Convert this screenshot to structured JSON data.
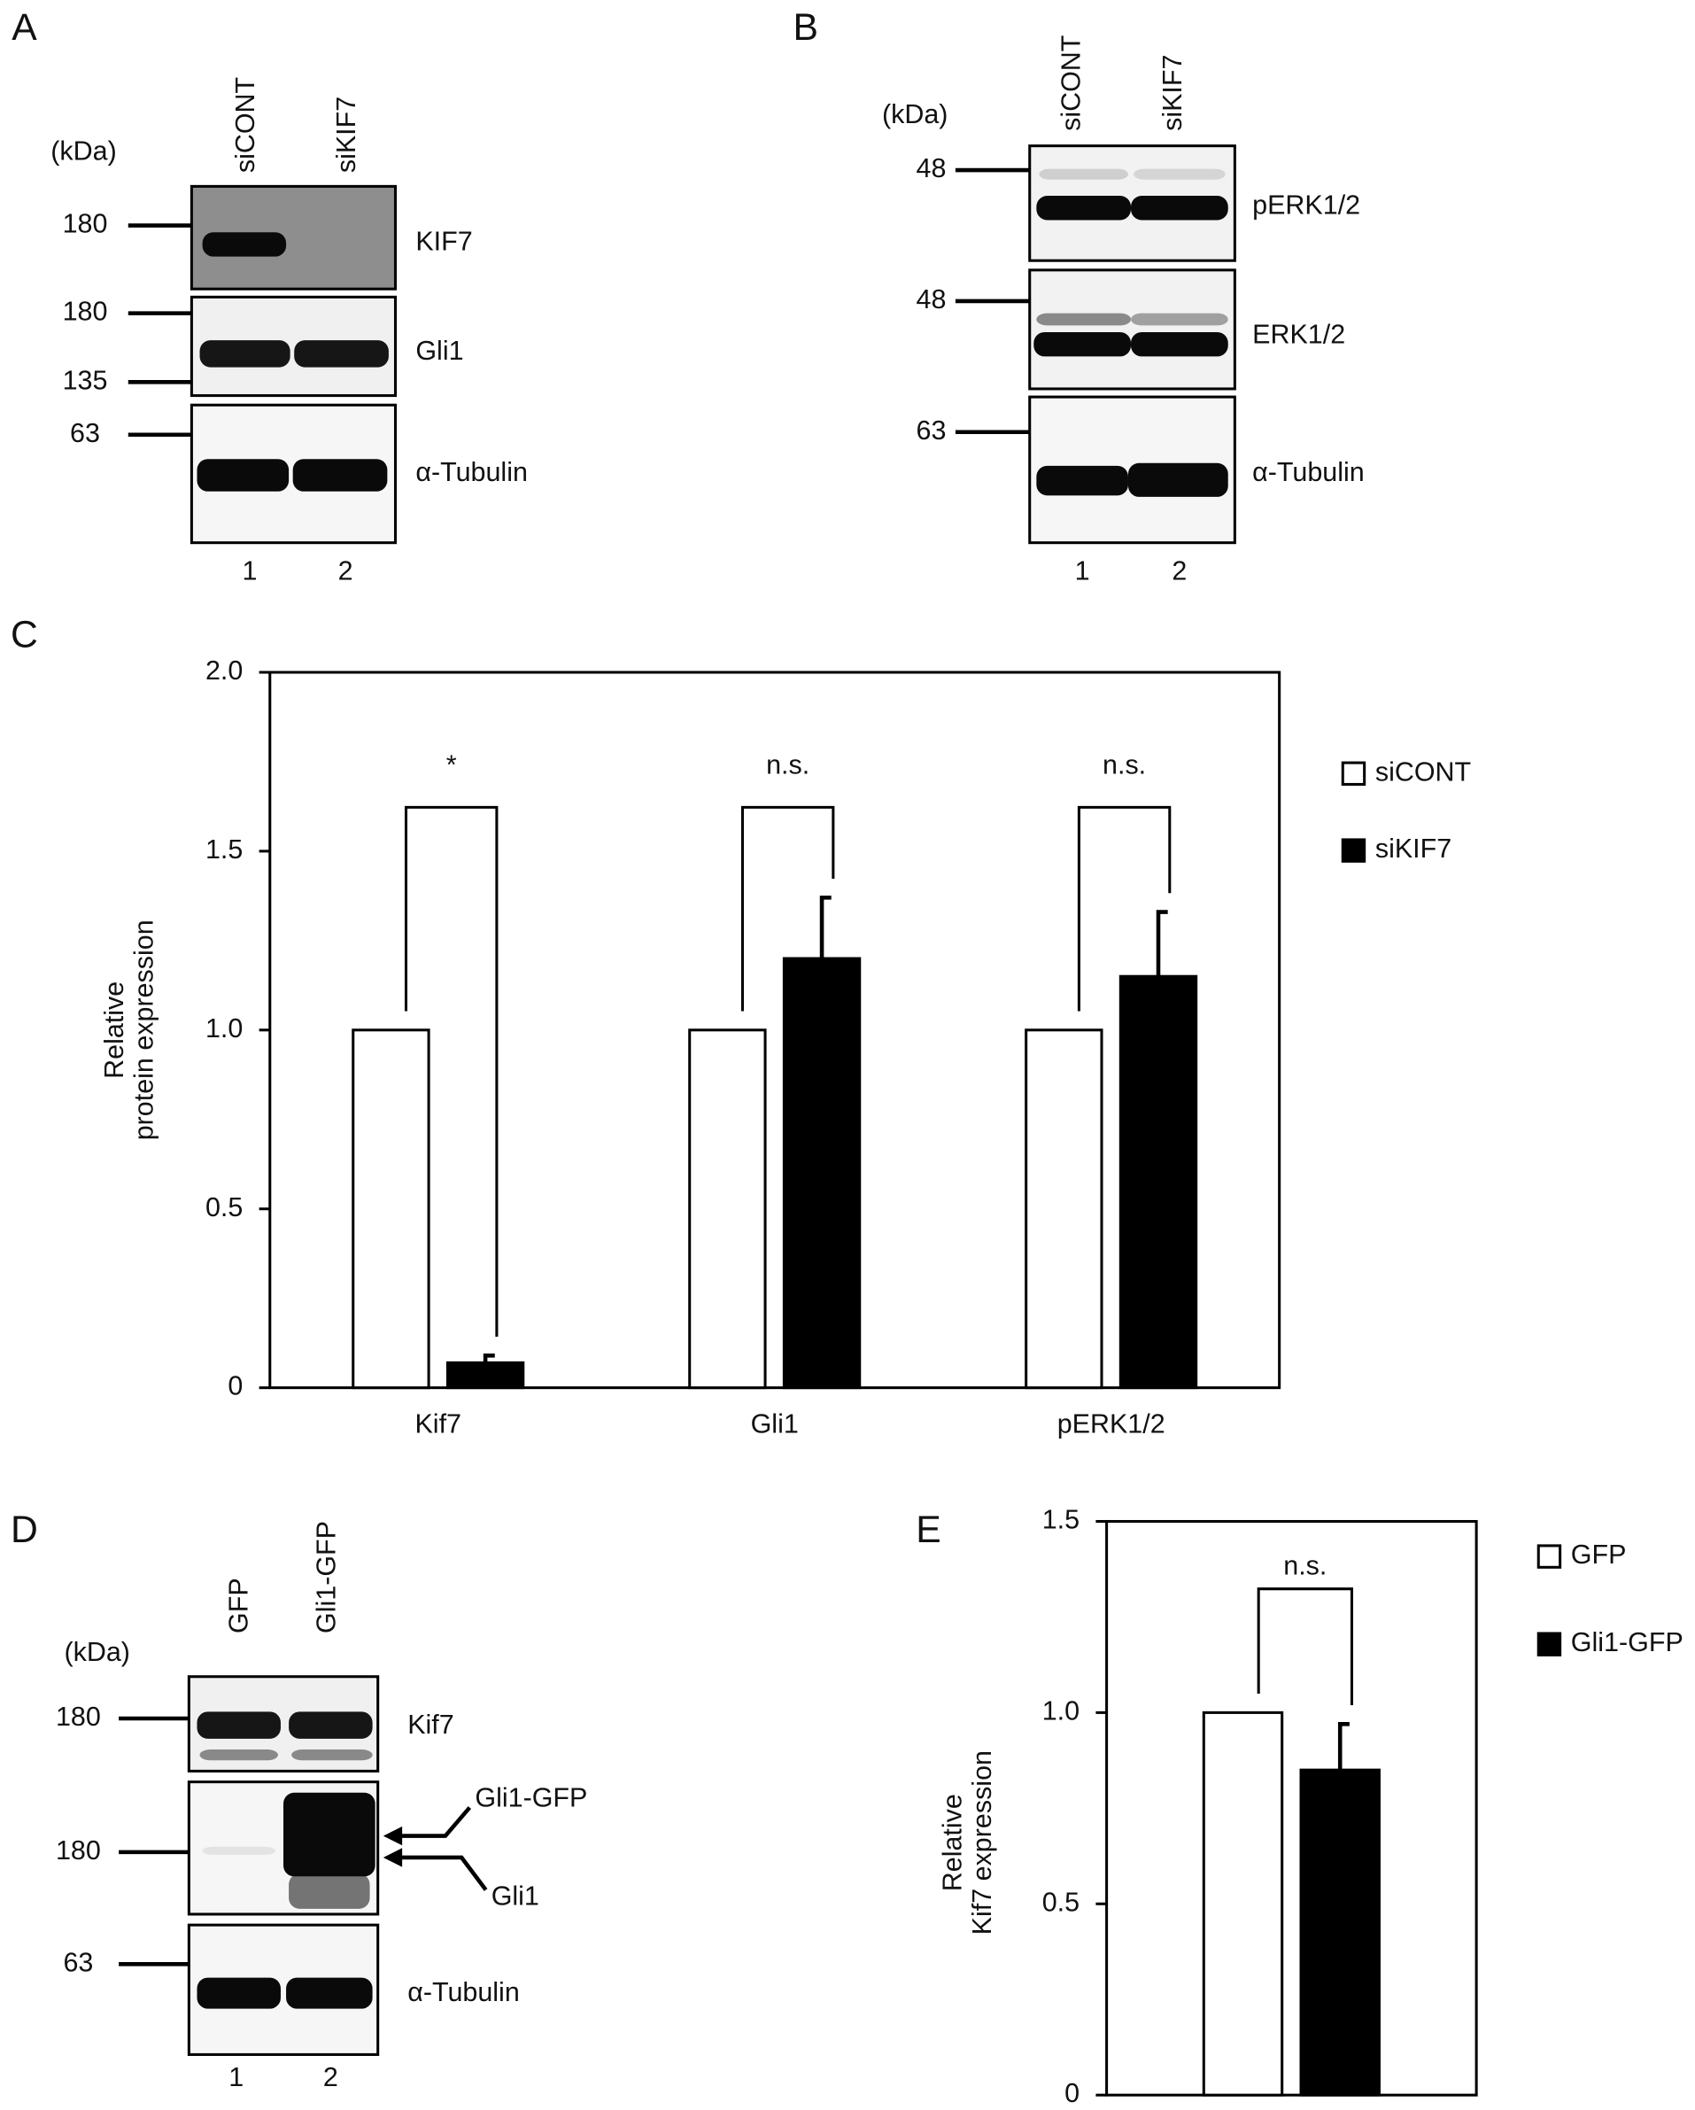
{
  "blots": [
    {
      "panel": "A",
      "unit": "(kDa)",
      "lanes": [
        "siCONT",
        "siKIF7"
      ],
      "lane_numbers": [
        "1",
        "2"
      ],
      "markers": [
        "180",
        "180",
        "135",
        "63"
      ],
      "proteins": [
        "KIF7",
        "Gli1",
        "α-Tubulin"
      ]
    },
    {
      "panel": "B",
      "unit": "(kDa)",
      "lanes": [
        "siCONT",
        "siKIF7"
      ],
      "lane_numbers": [
        "1",
        "2"
      ],
      "markers": [
        "48",
        "48",
        "63"
      ],
      "proteins": [
        "pERK1/2",
        "ERK1/2",
        "α-Tubulin"
      ]
    },
    {
      "panel": "D",
      "unit": "(kDa)",
      "lanes": [
        "GFP",
        "Gli1-GFP"
      ],
      "lane_numbers": [
        "1",
        "2"
      ],
      "markers": [
        "180",
        "180",
        "63"
      ],
      "proteins": [
        "Kif7",
        "α-Tubulin"
      ],
      "arrows": [
        "Gli1-GFP",
        "Gli1"
      ]
    }
  ],
  "chart_data": [
    {
      "panel": "C",
      "type": "bar",
      "ylabel": [
        "Relative",
        "protein expression"
      ],
      "categories": [
        "Kif7",
        "Gli1",
        "pERK1/2"
      ],
      "series": [
        {
          "name": "siCONT",
          "color": "#ffffff",
          "values": [
            1.0,
            1.0,
            1.0
          ]
        },
        {
          "name": "siKIF7",
          "color": "#000000",
          "values": [
            0.07,
            1.2,
            1.15
          ],
          "errors": [
            0.02,
            0.17,
            0.18
          ]
        }
      ],
      "annotations": [
        "*",
        "n.s.",
        "n.s."
      ],
      "ylim": [
        0,
        2
      ],
      "yticks": [
        0,
        0.5,
        {
          "value": 1,
          "label": "1.0"
        },
        1.5,
        {
          "value": 2,
          "label": "2.0"
        }
      ]
    },
    {
      "panel": "E",
      "type": "bar",
      "ylabel": [
        "Relative",
        "Kif7 expression"
      ],
      "categories": [
        null
      ],
      "series": [
        {
          "name": "GFP",
          "color": "#ffffff",
          "values": [
            1.0
          ]
        },
        {
          "name": "Gli1-GFP",
          "color": "#000000",
          "values": [
            0.85
          ],
          "errors": [
            0.12
          ]
        }
      ],
      "annotations": [
        "n.s."
      ],
      "ylim": [
        0,
        1.5
      ],
      "yticks": [
        0,
        0.5,
        {
          "value": 1,
          "label": "1.0"
        },
        1.5
      ]
    }
  ]
}
